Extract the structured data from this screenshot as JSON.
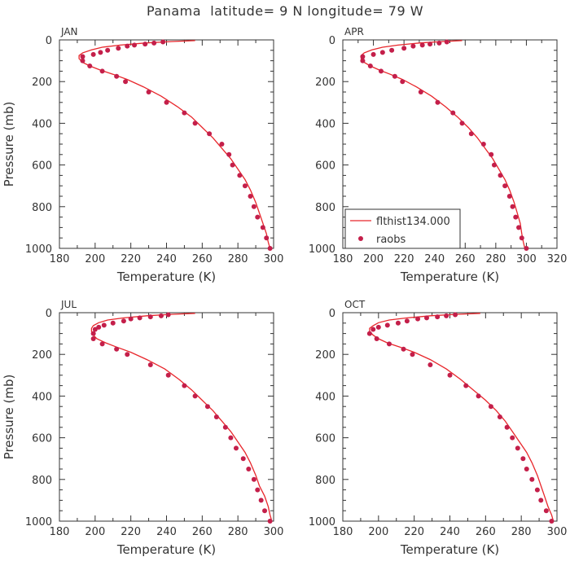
{
  "page": {
    "title": "Panama  latitude= 9 N longitude= 79 W"
  },
  "colors": {
    "model_line": "#e8262b",
    "obs_dot": "#c41f4a",
    "axis": "#333333"
  },
  "chart_data": [
    {
      "type": "line",
      "panel": "JAN",
      "xlabel": "Temperature (K)",
      "ylabel": "Pressure (mb)",
      "xlim": [
        180,
        300
      ],
      "ylim": [
        1000,
        0
      ],
      "xticks": [
        180,
        200,
        220,
        240,
        260,
        280,
        300
      ],
      "yticks": [
        0,
        200,
        400,
        600,
        800,
        1000
      ],
      "show_legend": false,
      "series": [
        {
          "name": "flthist134.000",
          "kind": "line",
          "points": [
            [
              256,
              3
            ],
            [
              243,
              8
            ],
            [
              228,
              15
            ],
            [
              214,
              25
            ],
            [
              204,
              35
            ],
            [
              198,
              48
            ],
            [
              193,
              62
            ],
            [
              191,
              75
            ],
            [
              191,
              90
            ],
            [
              193,
              108
            ],
            [
              197,
              125
            ],
            [
              203,
              145
            ],
            [
              210,
              165
            ],
            [
              218,
              190
            ],
            [
              227,
              225
            ],
            [
              237,
              270
            ],
            [
              246,
              320
            ],
            [
              254,
              370
            ],
            [
              260,
              420
            ],
            [
              266,
              470
            ],
            [
              271,
              520
            ],
            [
              276,
              570
            ],
            [
              280,
              620
            ],
            [
              284,
              670
            ],
            [
              287,
              720
            ],
            [
              290,
              780
            ],
            [
              292,
              830
            ],
            [
              294,
              880
            ],
            [
              296,
              930
            ],
            [
              297,
              970
            ],
            [
              298,
              1000
            ]
          ]
        },
        {
          "name": "raobs",
          "kind": "points",
          "points": [
            [
              238,
              10
            ],
            [
              233,
              15
            ],
            [
              228,
              20
            ],
            [
              222,
              25
            ],
            [
              218,
              30
            ],
            [
              213,
              40
            ],
            [
              207,
              50
            ],
            [
              203,
              60
            ],
            [
              199,
              70
            ],
            [
              193,
              80
            ],
            [
              193,
              100
            ],
            [
              197,
              125
            ],
            [
              204,
              150
            ],
            [
              212,
              175
            ],
            [
              217,
              200
            ],
            [
              230,
              250
            ],
            [
              240,
              300
            ],
            [
              250,
              350
            ],
            [
              256,
              400
            ],
            [
              264,
              450
            ],
            [
              271,
              500
            ],
            [
              275,
              550
            ],
            [
              277,
              600
            ],
            [
              281,
              650
            ],
            [
              284,
              700
            ],
            [
              287,
              750
            ],
            [
              289,
              800
            ],
            [
              291,
              850
            ],
            [
              294,
              900
            ],
            [
              296,
              950
            ],
            [
              298,
              1000
            ]
          ]
        }
      ]
    },
    {
      "type": "line",
      "panel": "APR",
      "xlabel": "Temperature (K)",
      "ylabel": "",
      "xlim": [
        180,
        320
      ],
      "ylim": [
        1000,
        0
      ],
      "xticks": [
        180,
        200,
        220,
        240,
        260,
        280,
        300,
        320
      ],
      "yticks": [
        0,
        200,
        400,
        600,
        800,
        1000
      ],
      "show_legend": true,
      "series": [
        {
          "name": "flthist134.000",
          "kind": "line",
          "points": [
            [
              258,
              3
            ],
            [
              245,
              8
            ],
            [
              230,
              15
            ],
            [
              216,
              25
            ],
            [
              206,
              35
            ],
            [
              199,
              48
            ],
            [
              194,
              62
            ],
            [
              192,
              75
            ],
            [
              192,
              90
            ],
            [
              194,
              108
            ],
            [
              198,
              125
            ],
            [
              204,
              145
            ],
            [
              211,
              165
            ],
            [
              219,
              190
            ],
            [
              228,
              225
            ],
            [
              238,
              270
            ],
            [
              247,
              320
            ],
            [
              255,
              370
            ],
            [
              262,
              420
            ],
            [
              268,
              470
            ],
            [
              273,
              520
            ],
            [
              278,
              570
            ],
            [
              282,
              620
            ],
            [
              286,
              670
            ],
            [
              289,
              720
            ],
            [
              292,
              780
            ],
            [
              294,
              830
            ],
            [
              296,
              880
            ],
            [
              297,
              930
            ],
            [
              298,
              970
            ],
            [
              299,
              1000
            ]
          ]
        },
        {
          "name": "raobs",
          "kind": "points",
          "points": [
            [
              248,
              10
            ],
            [
              243,
              15
            ],
            [
              237,
              20
            ],
            [
              232,
              25
            ],
            [
              226,
              30
            ],
            [
              220,
              40
            ],
            [
              212,
              50
            ],
            [
              206,
              60
            ],
            [
              200,
              70
            ],
            [
              193,
              80
            ],
            [
              193,
              100
            ],
            [
              198,
              125
            ],
            [
              205,
              150
            ],
            [
              214,
              175
            ],
            [
              219,
              200
            ],
            [
              231,
              250
            ],
            [
              242,
              300
            ],
            [
              252,
              350
            ],
            [
              258,
              400
            ],
            [
              264,
              450
            ],
            [
              272,
              500
            ],
            [
              277,
              550
            ],
            [
              279,
              600
            ],
            [
              283,
              650
            ],
            [
              286,
              700
            ],
            [
              289,
              750
            ],
            [
              291,
              800
            ],
            [
              293,
              850
            ],
            [
              295,
              900
            ],
            [
              297,
              950
            ],
            [
              300,
              1000
            ]
          ]
        }
      ]
    },
    {
      "type": "line",
      "panel": "JUL",
      "xlabel": "Temperature (K)",
      "ylabel": "Pressure (mb)",
      "xlim": [
        180,
        300
      ],
      "ylim": [
        1000,
        0
      ],
      "xticks": [
        180,
        200,
        220,
        240,
        260,
        280,
        300
      ],
      "yticks": [
        0,
        200,
        400,
        600,
        800,
        1000
      ],
      "show_legend": false,
      "series": [
        {
          "name": "flthist134.000",
          "kind": "line",
          "points": [
            [
              256,
              3
            ],
            [
              243,
              8
            ],
            [
              229,
              15
            ],
            [
              216,
              25
            ],
            [
              207,
              35
            ],
            [
              202,
              48
            ],
            [
              199,
              62
            ],
            [
              198,
              75
            ],
            [
              198,
              90
            ],
            [
              199,
              108
            ],
            [
              201,
              125
            ],
            [
              206,
              145
            ],
            [
              212,
              165
            ],
            [
              220,
              190
            ],
            [
              229,
              225
            ],
            [
              239,
              270
            ],
            [
              247,
              320
            ],
            [
              254,
              370
            ],
            [
              260,
              420
            ],
            [
              266,
              470
            ],
            [
              271,
              520
            ],
            [
              276,
              570
            ],
            [
              280,
              620
            ],
            [
              284,
              670
            ],
            [
              287,
              720
            ],
            [
              290,
              780
            ],
            [
              292,
              830
            ],
            [
              295,
              880
            ],
            [
              297,
              930
            ],
            [
              298,
              970
            ],
            [
              299,
              1000
            ]
          ]
        },
        {
          "name": "raobs",
          "kind": "points",
          "points": [
            [
              241,
              10
            ],
            [
              237,
              15
            ],
            [
              231,
              20
            ],
            [
              225,
              25
            ],
            [
              220,
              30
            ],
            [
              216,
              40
            ],
            [
              210,
              50
            ],
            [
              205,
              60
            ],
            [
              202,
              70
            ],
            [
              200,
              80
            ],
            [
              199,
              100
            ],
            [
              199,
              125
            ],
            [
              204,
              150
            ],
            [
              212,
              175
            ],
            [
              218,
              200
            ],
            [
              231,
              250
            ],
            [
              241,
              300
            ],
            [
              250,
              350
            ],
            [
              256,
              400
            ],
            [
              263,
              450
            ],
            [
              268,
              500
            ],
            [
              273,
              550
            ],
            [
              276,
              600
            ],
            [
              279,
              650
            ],
            [
              283,
              700
            ],
            [
              286,
              750
            ],
            [
              289,
              800
            ],
            [
              291,
              850
            ],
            [
              293,
              900
            ],
            [
              295,
              950
            ],
            [
              298,
              1000
            ]
          ]
        }
      ]
    },
    {
      "type": "line",
      "panel": "OCT",
      "xlabel": "Temperature (K)",
      "ylabel": "",
      "xlim": [
        180,
        300
      ],
      "ylim": [
        1000,
        0
      ],
      "xticks": [
        180,
        200,
        220,
        240,
        260,
        280,
        300
      ],
      "yticks": [
        0,
        200,
        400,
        600,
        800,
        1000
      ],
      "show_legend": false,
      "series": [
        {
          "name": "flthist134.000",
          "kind": "line",
          "points": [
            [
              257,
              3
            ],
            [
              244,
              8
            ],
            [
              229,
              15
            ],
            [
              216,
              25
            ],
            [
              206,
              35
            ],
            [
              200,
              48
            ],
            [
              197,
              62
            ],
            [
              195,
              75
            ],
            [
              195,
              90
            ],
            [
              197,
              108
            ],
            [
              200,
              125
            ],
            [
              205,
              145
            ],
            [
              212,
              165
            ],
            [
              220,
              190
            ],
            [
              229,
              225
            ],
            [
              238,
              270
            ],
            [
              246,
              320
            ],
            [
              253,
              370
            ],
            [
              260,
              420
            ],
            [
              266,
              470
            ],
            [
              271,
              520
            ],
            [
              275,
              570
            ],
            [
              279,
              620
            ],
            [
              283,
              670
            ],
            [
              286,
              720
            ],
            [
              289,
              780
            ],
            [
              291,
              830
            ],
            [
              293,
              880
            ],
            [
              295,
              930
            ],
            [
              297,
              970
            ],
            [
              298,
              1000
            ]
          ]
        },
        {
          "name": "raobs",
          "kind": "points",
          "points": [
            [
              243,
              10
            ],
            [
              238,
              15
            ],
            [
              233,
              20
            ],
            [
              227,
              25
            ],
            [
              222,
              30
            ],
            [
              216,
              40
            ],
            [
              211,
              50
            ],
            [
              205,
              60
            ],
            [
              200,
              70
            ],
            [
              197,
              80
            ],
            [
              195,
              100
            ],
            [
              199,
              125
            ],
            [
              206,
              150
            ],
            [
              214,
              175
            ],
            [
              219,
              200
            ],
            [
              229,
              250
            ],
            [
              240,
              300
            ],
            [
              249,
              350
            ],
            [
              256,
              400
            ],
            [
              263,
              450
            ],
            [
              268,
              500
            ],
            [
              272,
              550
            ],
            [
              275,
              600
            ],
            [
              278,
              650
            ],
            [
              281,
              700
            ],
            [
              283,
              750
            ],
            [
              286,
              800
            ],
            [
              289,
              850
            ],
            [
              291,
              900
            ],
            [
              294,
              950
            ],
            [
              297,
              1000
            ]
          ]
        }
      ]
    }
  ]
}
